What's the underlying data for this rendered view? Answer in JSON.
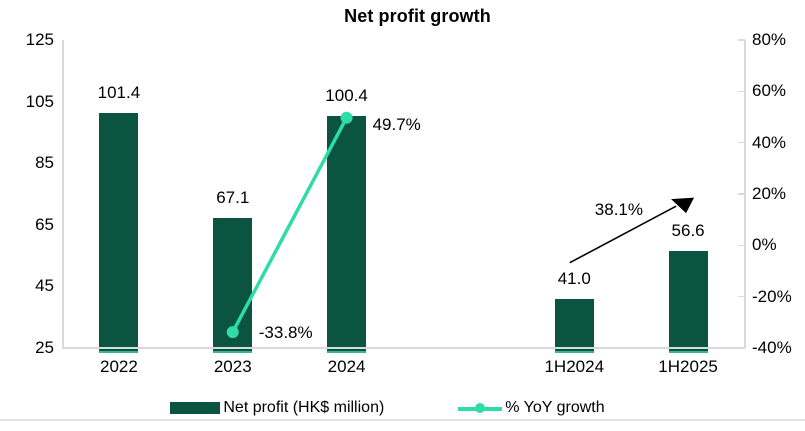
{
  "title": "Net profit growth",
  "chart_data": {
    "type": "bar+line combo",
    "title": "Net profit growth",
    "categories": [
      "2022",
      "2023",
      "2024",
      "",
      "1H2024",
      "1H2025"
    ],
    "series": [
      {
        "name": "Net profit (HK$ million)",
        "type": "bar",
        "axis": "left",
        "color": "#0b5440",
        "values": [
          101.4,
          67.1,
          100.4,
          null,
          41.0,
          56.6
        ],
        "labels": [
          "101.4",
          "67.1",
          "100.4",
          null,
          "41.0",
          "56.6"
        ]
      },
      {
        "name": "% YoY growth",
        "type": "line",
        "axis": "right",
        "color": "#2edcaa",
        "values": [
          null,
          -33.8,
          49.7,
          null,
          null,
          null
        ],
        "labels": [
          null,
          "-33.8%",
          "49.7%",
          null,
          null,
          null
        ],
        "label_dy": [
          0,
          1,
          7,
          0,
          0,
          0
        ]
      }
    ],
    "annotation": {
      "text": "38.1%",
      "type": "growth-arrow",
      "from_index": 4,
      "to_index": 5
    },
    "left_axis": {
      "min": 25,
      "max": 125,
      "ticks": [
        125,
        105,
        85,
        65,
        45,
        25
      ]
    },
    "right_axis": {
      "min": -40,
      "max": 80,
      "tick_labels": [
        "80%",
        "60%",
        "40%",
        "20%",
        "0%",
        "-20%",
        "-40%"
      ],
      "tick_values": [
        80,
        60,
        40,
        20,
        0,
        -20,
        -40
      ]
    },
    "grid": false,
    "legend_position": "bottom"
  },
  "legend": {
    "items": [
      {
        "label": "Net profit (HK$ million)",
        "marker": "bar-swatch",
        "color": "#0b5440"
      },
      {
        "label": "% YoY growth",
        "marker": "line-dot-swatch",
        "color": "#2edcaa"
      }
    ]
  },
  "colors": {
    "bar": "#0b5440",
    "line": "#2edcaa",
    "bar_base_accent": "#37b893",
    "axis": "#d9d9d9",
    "arrow": "#000000",
    "text": "#000000"
  }
}
